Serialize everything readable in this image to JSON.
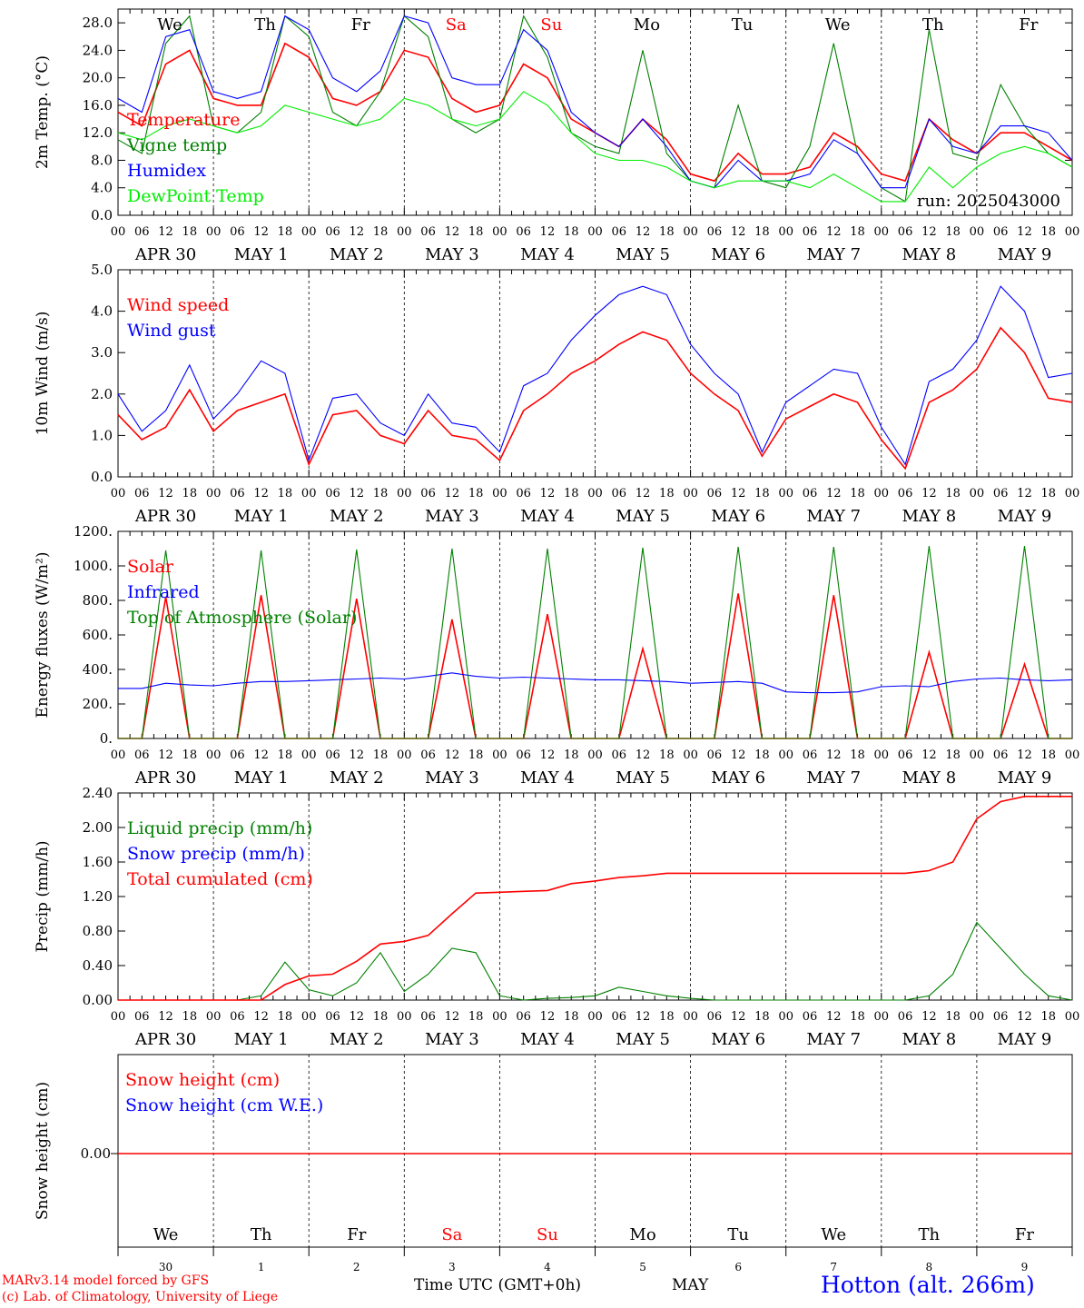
{
  "chart_data": [
    {
      "type": "line",
      "ylabel": "2m Temp. (°C)",
      "ylim": [
        0,
        30
      ],
      "yticks": [
        "0.0",
        "4.0",
        "8.0",
        "12.0",
        "16.0",
        "20.0",
        "24.0",
        "28.0"
      ],
      "ytick_values": [
        0,
        4,
        8,
        12,
        16,
        20,
        24,
        28
      ],
      "run_label": "run: 2025043000",
      "x_hours": [
        0,
        6,
        12,
        18,
        24,
        30,
        36,
        42,
        48,
        54,
        60,
        66,
        72,
        78,
        84,
        90,
        96,
        102,
        108,
        114,
        120,
        126,
        132,
        138,
        144,
        150,
        156,
        162,
        168,
        174,
        180,
        186,
        192,
        198,
        204,
        210,
        216,
        222,
        228,
        234,
        240
      ],
      "series": [
        {
          "name": "Temperature",
          "color": "#ff0000",
          "values": [
            15,
            13,
            22,
            24,
            17,
            16,
            16,
            25,
            23,
            17,
            16,
            18,
            24,
            23,
            17,
            15,
            16,
            22,
            20,
            14,
            12,
            10,
            14,
            11,
            6,
            5,
            9,
            6,
            6,
            7,
            12,
            10,
            6,
            5,
            14,
            11,
            9,
            12,
            12,
            10,
            8
          ]
        },
        {
          "name": "Vigne temp",
          "color": "#008000",
          "values": [
            11,
            9,
            25,
            29,
            13,
            12,
            15,
            29,
            26,
            15,
            13,
            18,
            29,
            26,
            14,
            12,
            14,
            29,
            23,
            12,
            10,
            9,
            24,
            9,
            5,
            4,
            16,
            5,
            4,
            10,
            25,
            9,
            4,
            2,
            27,
            9,
            8,
            19,
            13,
            9,
            7
          ]
        },
        {
          "name": "Humidex",
          "color": "#0000ff",
          "values": [
            17,
            15,
            26,
            27,
            18,
            17,
            18,
            29,
            27,
            20,
            18,
            21,
            29,
            28,
            20,
            19,
            19,
            27,
            24,
            15,
            12,
            10,
            14,
            10,
            5,
            4,
            8,
            5,
            5,
            6,
            11,
            9,
            4,
            4,
            14,
            10,
            9,
            13,
            13,
            12,
            8
          ]
        },
        {
          "name": "DewPoint Temp",
          "color": "#00ee00",
          "values": [
            12,
            11,
            13,
            14,
            13,
            12,
            13,
            16,
            15,
            14,
            13,
            14,
            17,
            16,
            14,
            13,
            14,
            18,
            16,
            12,
            9,
            8,
            8,
            7,
            5,
            4,
            5,
            5,
            5,
            4,
            6,
            4,
            2,
            2,
            7,
            4,
            7,
            9,
            10,
            9,
            7
          ]
        }
      ]
    },
    {
      "type": "line",
      "ylabel": "10m Wind (m/s)",
      "ylim": [
        0,
        5
      ],
      "yticks": [
        "0.0",
        "1.0",
        "2.0",
        "3.0",
        "4.0",
        "5.0"
      ],
      "ytick_values": [
        0,
        1,
        2,
        3,
        4,
        5
      ],
      "x_hours": [
        0,
        6,
        12,
        18,
        24,
        30,
        36,
        42,
        48,
        54,
        60,
        66,
        72,
        78,
        84,
        90,
        96,
        102,
        108,
        114,
        120,
        126,
        132,
        138,
        144,
        150,
        156,
        162,
        168,
        174,
        180,
        186,
        192,
        198,
        204,
        210,
        216,
        222,
        228,
        234,
        240
      ],
      "series": [
        {
          "name": "Wind speed",
          "color": "#ff0000",
          "values": [
            1.5,
            0.9,
            1.2,
            2.1,
            1.1,
            1.6,
            1.8,
            2.0,
            0.3,
            1.5,
            1.6,
            1.0,
            0.8,
            1.6,
            1.0,
            0.9,
            0.4,
            1.6,
            2.0,
            2.5,
            2.8,
            3.2,
            3.5,
            3.3,
            2.5,
            2.0,
            1.6,
            0.5,
            1.4,
            1.7,
            2.0,
            1.8,
            0.9,
            0.2,
            1.8,
            2.1,
            2.6,
            3.6,
            3.0,
            1.9,
            1.8
          ]
        },
        {
          "name": "Wind gust",
          "color": "#0000ff",
          "values": [
            2.0,
            1.1,
            1.6,
            2.7,
            1.4,
            2.0,
            2.8,
            2.5,
            0.4,
            1.9,
            2.0,
            1.3,
            1.0,
            2.0,
            1.3,
            1.2,
            0.6,
            2.2,
            2.5,
            3.3,
            3.9,
            4.4,
            4.6,
            4.4,
            3.2,
            2.5,
            2.0,
            0.6,
            1.8,
            2.2,
            2.6,
            2.5,
            1.2,
            0.3,
            2.3,
            2.6,
            3.3,
            4.6,
            4.0,
            2.4,
            2.5
          ]
        }
      ]
    },
    {
      "type": "line",
      "ylabel": "Energy fluxes (W/m²)",
      "ylim": [
        0,
        1200
      ],
      "yticks": [
        "0.",
        "200.",
        "400.",
        "600.",
        "800.",
        "1000.",
        "1200."
      ],
      "ytick_values": [
        0,
        200,
        400,
        600,
        800,
        1000,
        1200
      ],
      "x_hours": [
        0,
        6,
        12,
        18,
        24,
        30,
        36,
        42,
        48,
        54,
        60,
        66,
        72,
        78,
        84,
        90,
        96,
        102,
        108,
        114,
        120,
        126,
        132,
        138,
        144,
        150,
        156,
        162,
        168,
        174,
        180,
        186,
        192,
        198,
        204,
        210,
        216,
        222,
        228,
        234,
        240
      ],
      "series": [
        {
          "name": "Solar",
          "color": "#ff0000",
          "values": [
            0,
            0,
            820,
            0,
            0,
            0,
            830,
            0,
            0,
            0,
            810,
            0,
            0,
            0,
            690,
            0,
            0,
            0,
            720,
            0,
            0,
            0,
            520,
            0,
            0,
            0,
            840,
            0,
            0,
            0,
            830,
            0,
            0,
            0,
            500,
            0,
            0,
            0,
            430,
            0,
            0
          ]
        },
        {
          "name": "Infrared",
          "color": "#0000ff",
          "values": [
            290,
            290,
            320,
            310,
            305,
            320,
            330,
            330,
            335,
            340,
            345,
            350,
            345,
            360,
            380,
            360,
            350,
            355,
            350,
            345,
            340,
            340,
            335,
            330,
            320,
            325,
            330,
            320,
            270,
            265,
            265,
            270,
            300,
            305,
            300,
            330,
            345,
            350,
            340,
            335,
            340
          ]
        },
        {
          "name": "Top of Atmosphere (Solar)",
          "color": "#008000",
          "values": [
            0,
            0,
            1090,
            0,
            0,
            0,
            1090,
            0,
            0,
            0,
            1095,
            0,
            0,
            0,
            1100,
            0,
            0,
            0,
            1100,
            0,
            0,
            0,
            1105,
            0,
            0,
            0,
            1110,
            0,
            0,
            0,
            1110,
            0,
            0,
            0,
            1115,
            0,
            0,
            0,
            1115,
            0,
            0
          ]
        }
      ]
    },
    {
      "type": "line",
      "ylabel": "Precip (mm/h)",
      "ylim": [
        0,
        2.4
      ],
      "yticks": [
        "0.00",
        "0.40",
        "0.80",
        "1.20",
        "1.60",
        "2.00",
        "2.40"
      ],
      "ytick_values": [
        0,
        0.4,
        0.8,
        1.2,
        1.6,
        2.0,
        2.4
      ],
      "x_hours": [
        0,
        6,
        12,
        18,
        24,
        30,
        36,
        42,
        48,
        54,
        60,
        66,
        72,
        78,
        84,
        90,
        96,
        102,
        108,
        114,
        120,
        126,
        132,
        138,
        144,
        150,
        156,
        162,
        168,
        174,
        180,
        186,
        192,
        198,
        204,
        210,
        216,
        222,
        228,
        234,
        240
      ],
      "series": [
        {
          "name": "Liquid precip (mm/h)",
          "color": "#008000",
          "values": [
            0,
            0,
            0,
            0,
            0,
            0,
            0.05,
            0.44,
            0.12,
            0.05,
            0.2,
            0.55,
            0.1,
            0.3,
            0.6,
            0.55,
            0.05,
            0,
            0.02,
            0.03,
            0.05,
            0.15,
            0.1,
            0.05,
            0.02,
            0,
            0,
            0,
            0,
            0,
            0,
            0,
            0,
            0,
            0.05,
            0.3,
            0.9,
            0.6,
            0.3,
            0.05,
            0
          ]
        },
        {
          "name": "Snow precip (mm/h)",
          "color": "#0000ff",
          "values": [
            0,
            0,
            0,
            0,
            0,
            0,
            0,
            0,
            0,
            0,
            0,
            0,
            0,
            0,
            0,
            0,
            0,
            0,
            0,
            0,
            0,
            0,
            0,
            0,
            0,
            0,
            0,
            0,
            0,
            0,
            0,
            0,
            0,
            0,
            0,
            0,
            0,
            0,
            0,
            0,
            0
          ]
        },
        {
          "name": "Total cumulated (cm)",
          "color": "#ff0000",
          "values": [
            0,
            0,
            0,
            0,
            0,
            0,
            0,
            0.18,
            0.28,
            0.3,
            0.45,
            0.65,
            0.68,
            0.75,
            1.0,
            1.24,
            1.25,
            1.26,
            1.27,
            1.35,
            1.38,
            1.42,
            1.44,
            1.47,
            1.47,
            1.47,
            1.47,
            1.47,
            1.47,
            1.47,
            1.47,
            1.47,
            1.47,
            1.47,
            1.5,
            1.6,
            2.1,
            2.3,
            2.36,
            2.36,
            2.36
          ]
        }
      ]
    },
    {
      "type": "line",
      "ylabel": "Snow height (cm)",
      "yticks": [
        "0.00"
      ],
      "series": [
        {
          "name": "Snow height (cm)",
          "color": "#ff0000",
          "values": [
            0,
            0
          ]
        },
        {
          "name": "Snow height (cm W.E.)",
          "color": "#0000ff",
          "values": [
            0,
            0
          ]
        }
      ]
    }
  ],
  "axis": {
    "hour_tick_labels": [
      "00",
      "06",
      "12",
      "18"
    ],
    "date_labels": [
      "APR 30",
      "MAY  1",
      "MAY  2",
      "MAY  3",
      "MAY  4",
      "MAY  5",
      "MAY  6",
      "MAY  7",
      "MAY  8",
      "MAY  9"
    ],
    "weekdays": [
      "We",
      "Th",
      "Fr",
      "Sa",
      "Su",
      "Mo",
      "Tu",
      "We",
      "Th",
      "Fr"
    ],
    "weekend_days": [
      3,
      4
    ],
    "day_numbers": [
      "30",
      "1",
      "2",
      "3",
      "4",
      "5",
      "6",
      "7",
      "8",
      "9"
    ],
    "xlabel": "Time UTC (GMT+0h)",
    "month_label": "MAY"
  },
  "footer": {
    "model_line": "MARv3.14 model forced by GFS",
    "credit_line": "(c) Lab. of Climatology, University of Liege",
    "station": "Hotton (alt. 266m)"
  },
  "colors": {
    "weekday_text": "#000000",
    "weekend_text": "#ff0000",
    "footer_red": "#ff0000",
    "station_blue": "#0000ff"
  }
}
